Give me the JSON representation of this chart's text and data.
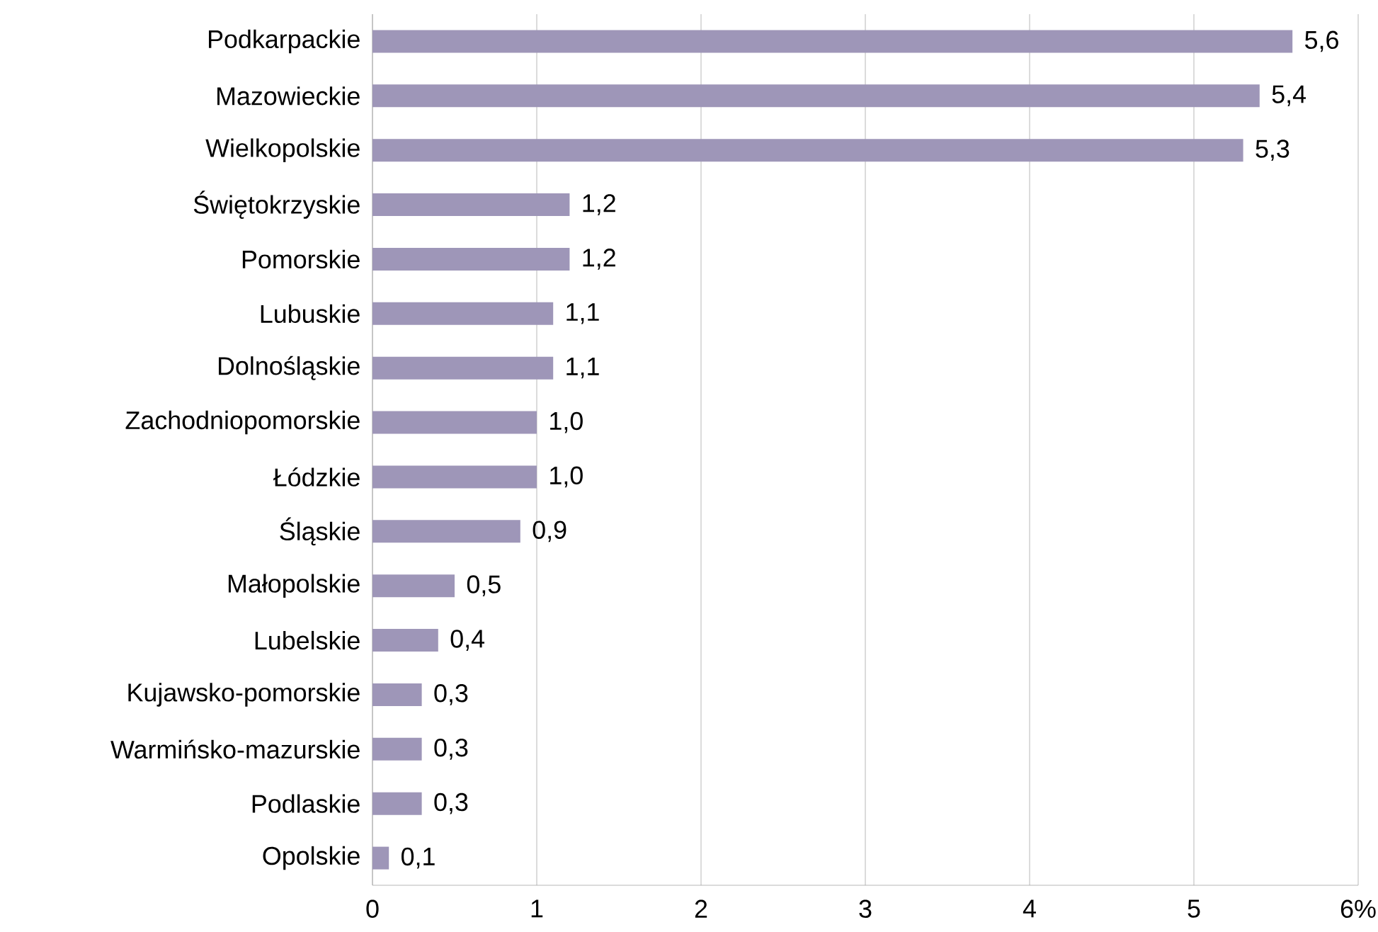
{
  "chart_data": {
    "type": "bar",
    "orientation": "horizontal",
    "categories": [
      "Podkarpackie",
      "Mazowieckie",
      "Wielkopolskie",
      "Świętokrzyskie",
      "Pomorskie",
      "Lubuskie",
      "Dolnośląskie",
      "Zachodniopomorskie",
      "Łódzkie",
      "Śląskie",
      "Małopolskie",
      "Lubelskie",
      "Kujawsko-pomorskie",
      "Warmińsko-mazurskie",
      "Podlaskie",
      "Opolskie"
    ],
    "values": [
      5.6,
      5.4,
      5.3,
      1.2,
      1.2,
      1.1,
      1.1,
      1.0,
      1.0,
      0.9,
      0.5,
      0.4,
      0.3,
      0.3,
      0.3,
      0.1
    ],
    "value_labels": [
      "5,6",
      "5,4",
      "5,3",
      "1,2",
      "1,2",
      "1,1",
      "1,1",
      "1,0",
      "1,0",
      "0,9",
      "0,5",
      "0,4",
      "0,3",
      "0,3",
      "0,3",
      "0,1"
    ],
    "color": "#9e96b8",
    "xlim": [
      0,
      6
    ],
    "xticks": [
      0,
      1,
      2,
      3,
      4,
      5,
      {
        "value": 6,
        "label": "6%"
      }
    ],
    "grid": "x"
  }
}
